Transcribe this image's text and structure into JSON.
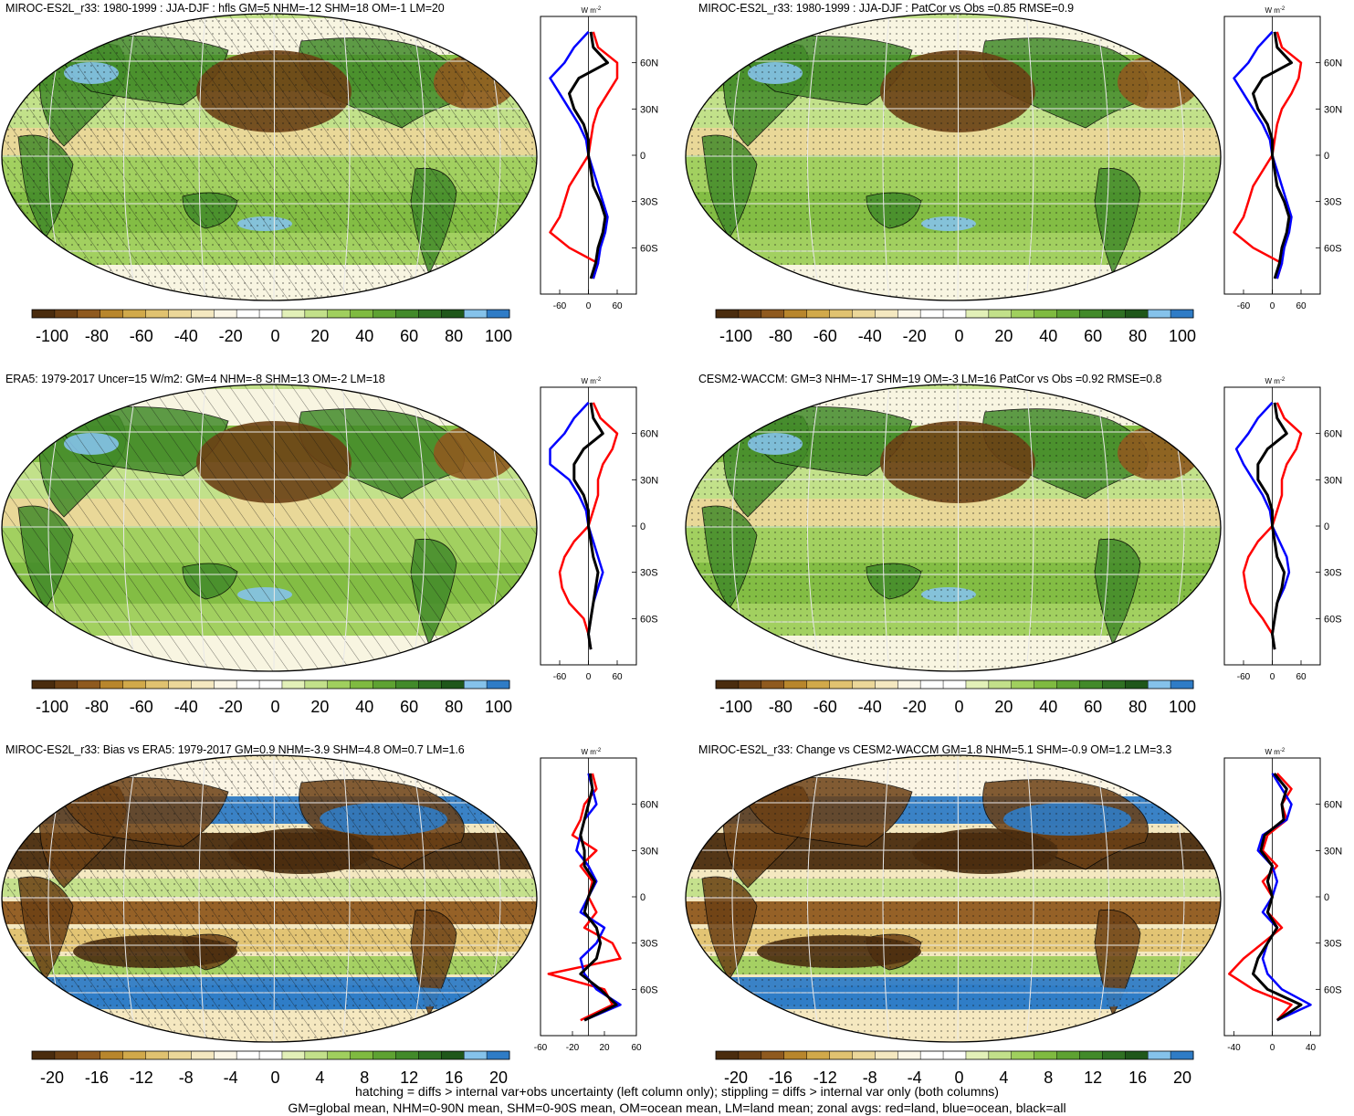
{
  "footer": {
    "line1": "hatching = diffs > internal var+obs uncertainty (left column only); stippling = diffs > internal var only (both columns)",
    "line2": "GM=global mean, NHM=0-90N mean, SHM=0-90S mean, OM=ocean mean, LM=land mean; zonal avgs: red=land, blue=ocean, black=all"
  },
  "palette": [
    "#4a2c0e",
    "#6b4015",
    "#8f5a1f",
    "#b8862c",
    "#d1a94a",
    "#e0c270",
    "#ebd799",
    "#f4e8c0",
    "#fbf6e6",
    "#ffffff",
    "#ffffff",
    "#e2f0b8",
    "#c2e08a",
    "#a0cf5e",
    "#7fba40",
    "#5ea232",
    "#428a2a",
    "#2f7023",
    "#1f571a",
    "#85c2ea",
    "#2f7cc6"
  ],
  "colors": {
    "land": "#ff0000",
    "ocean": "#0000ff",
    "all": "#000000"
  },
  "zonal_unit": "W m",
  "zonal_unit_sup": "-2",
  "lat_ticks": [
    "60N",
    "30N",
    "0",
    "30S",
    "60S"
  ],
  "panels": [
    {
      "id": "miroc-clim",
      "title": "MIROC-ES2L_r33: 1980-1999 : JJA-DJF : hfls GM=5 NHM=-12 SHM=18 OM=-1 LM=20",
      "colorbar_labels": [
        "-100",
        "-80",
        "-60",
        "-40",
        "-20",
        "0",
        "20",
        "40",
        "60",
        "80",
        "100"
      ],
      "zonal_ticks": [
        "-60",
        "0",
        "60"
      ],
      "zonal_range": [
        -100,
        100
      ],
      "pattern": "both",
      "chart_data": {
        "type": "line",
        "x_label": "W m-2",
        "lat": [
          80,
          70,
          60,
          50,
          40,
          30,
          20,
          10,
          0,
          -10,
          -20,
          -30,
          -40,
          -50,
          -60,
          -70,
          -80
        ],
        "series": [
          {
            "name": "red",
            "values": [
              10,
              20,
              60,
              60,
              40,
              20,
              10,
              5,
              0,
              -20,
              -40,
              -50,
              -60,
              -80,
              -40,
              20,
              10
            ]
          },
          {
            "name": "blue",
            "values": [
              0,
              -30,
              -50,
              -80,
              -60,
              -40,
              -20,
              -5,
              0,
              10,
              20,
              30,
              40,
              35,
              25,
              20,
              10
            ]
          },
          {
            "name": "black",
            "values": [
              5,
              10,
              40,
              -20,
              -40,
              -30,
              -10,
              0,
              0,
              5,
              10,
              25,
              35,
              30,
              20,
              15,
              5
            ]
          }
        ]
      }
    },
    {
      "id": "miroc-patcor",
      "title": "MIROC-ES2L_r33: 1980-1999 : JJA-DJF : PatCor vs Obs =0.85 RMSE=0.9",
      "colorbar_labels": [
        "-100",
        "-80",
        "-60",
        "-40",
        "-20",
        "0",
        "20",
        "40",
        "60",
        "80",
        "100"
      ],
      "zonal_ticks": [
        "-60",
        "0",
        "60"
      ],
      "zonal_range": [
        -100,
        100
      ],
      "pattern": "stipple",
      "chart_data": {
        "type": "line",
        "x_label": "W m-2",
        "lat": [
          80,
          70,
          60,
          50,
          40,
          30,
          20,
          10,
          0,
          -10,
          -20,
          -30,
          -40,
          -50,
          -60,
          -70,
          -80
        ],
        "series": [
          {
            "name": "red",
            "values": [
              10,
              20,
              60,
              55,
              40,
              20,
              10,
              5,
              0,
              -20,
              -40,
              -50,
              -60,
              -80,
              -40,
              20,
              10
            ]
          },
          {
            "name": "blue",
            "values": [
              0,
              -30,
              -50,
              -80,
              -60,
              -40,
              -20,
              -5,
              0,
              10,
              20,
              30,
              40,
              35,
              25,
              20,
              10
            ]
          },
          {
            "name": "black",
            "values": [
              5,
              10,
              40,
              -20,
              -40,
              -30,
              -10,
              0,
              0,
              5,
              10,
              25,
              35,
              30,
              20,
              15,
              5
            ]
          }
        ]
      }
    },
    {
      "id": "era5",
      "title": "ERA5: 1979-2017 Uncer=15 W/m2: GM=4 NHM=-8 SHM=13 OM=-2 LM=18",
      "colorbar_labels": [
        "-100",
        "-80",
        "-60",
        "-40",
        "-20",
        "0",
        "20",
        "40",
        "60",
        "80",
        "100"
      ],
      "zonal_ticks": [
        "-60",
        "0",
        "60"
      ],
      "zonal_range": [
        -100,
        100
      ],
      "pattern": "hatch",
      "chart_data": {
        "type": "line",
        "x_label": "W m-2",
        "lat": [
          80,
          70,
          60,
          50,
          40,
          30,
          20,
          10,
          0,
          -10,
          -20,
          -30,
          -40,
          -50,
          -60,
          -70,
          -80
        ],
        "series": [
          {
            "name": "red",
            "values": [
              10,
              25,
              60,
              50,
              30,
              20,
              20,
              10,
              0,
              -30,
              -50,
              -60,
              -55,
              -40,
              -10,
              0,
              5
            ]
          },
          {
            "name": "blue",
            "values": [
              0,
              -30,
              -50,
              -80,
              -80,
              -40,
              -20,
              -5,
              0,
              10,
              20,
              30,
              20,
              10,
              5,
              0,
              5
            ]
          },
          {
            "name": "black",
            "values": [
              5,
              10,
              30,
              -10,
              -30,
              -30,
              -10,
              0,
              0,
              5,
              10,
              20,
              15,
              10,
              5,
              0,
              5
            ]
          }
        ]
      }
    },
    {
      "id": "cesm2",
      "title": "CESM2-WACCM: GM=3 NHM=-17 SHM=19 OM=-3 LM=16 PatCor vs Obs =0.92 RMSE=0.8",
      "colorbar_labels": [
        "-100",
        "-80",
        "-60",
        "-40",
        "-20",
        "0",
        "20",
        "40",
        "60",
        "80",
        "100"
      ],
      "zonal_ticks": [
        "-60",
        "0",
        "60"
      ],
      "zonal_range": [
        -100,
        100
      ],
      "pattern": "stipple",
      "chart_data": {
        "type": "line",
        "x_label": "W m-2",
        "lat": [
          80,
          70,
          60,
          50,
          40,
          30,
          20,
          10,
          0,
          -10,
          -20,
          -30,
          -40,
          -50,
          -60,
          -70,
          -80
        ],
        "series": [
          {
            "name": "red",
            "values": [
              10,
              25,
              60,
              50,
              30,
              20,
              20,
              10,
              0,
              -30,
              -50,
              -60,
              -55,
              -45,
              -20,
              0,
              5
            ]
          },
          {
            "name": "blue",
            "values": [
              0,
              -30,
              -50,
              -75,
              -60,
              -40,
              -20,
              -5,
              0,
              15,
              30,
              35,
              25,
              10,
              5,
              0,
              5
            ]
          },
          {
            "name": "black",
            "values": [
              5,
              10,
              30,
              -10,
              -30,
              -30,
              -10,
              0,
              0,
              5,
              10,
              25,
              20,
              10,
              5,
              0,
              5
            ]
          }
        ]
      }
    },
    {
      "id": "bias",
      "title": "MIROC-ES2L_r33: Bias vs ERA5: 1979-2017 GM=0.9 NHM=-3.9 SHM=4.8 OM=0.7 LM=1.6",
      "colorbar_labels": [
        "-20",
        "-16",
        "-12",
        "-8",
        "-4",
        "0",
        "4",
        "8",
        "12",
        "16",
        "20"
      ],
      "zonal_ticks": [
        "-60",
        "-20",
        "20",
        "60"
      ],
      "zonal_range": [
        -60,
        60
      ],
      "pattern": "both",
      "chart_data": {
        "type": "line",
        "x_label": "W m-2",
        "lat": [
          80,
          70,
          60,
          50,
          40,
          30,
          20,
          10,
          0,
          -10,
          -20,
          -30,
          -40,
          -50,
          -60,
          -70,
          -80
        ],
        "series": [
          {
            "name": "red",
            "values": [
              5,
              10,
              -5,
              -10,
              -20,
              10,
              -10,
              5,
              0,
              10,
              -5,
              30,
              40,
              -50,
              20,
              30,
              -10
            ]
          },
          {
            "name": "blue",
            "values": [
              0,
              5,
              10,
              -5,
              -10,
              -15,
              0,
              10,
              0,
              -10,
              20,
              10,
              -10,
              -5,
              10,
              40,
              -5
            ]
          },
          {
            "name": "black",
            "values": [
              2,
              5,
              0,
              -5,
              -10,
              -5,
              -5,
              8,
              0,
              -5,
              10,
              15,
              10,
              -10,
              15,
              35,
              -5
            ]
          }
        ]
      }
    },
    {
      "id": "change",
      "title": "MIROC-ES2L_r33: Change vs CESM2-WACCM GM=1.8 NHM=5.1 SHM=-0.9 OM=1.2 LM=3.3",
      "colorbar_labels": [
        "-20",
        "-16",
        "-12",
        "-8",
        "-4",
        "0",
        "4",
        "8",
        "12",
        "16",
        "20"
      ],
      "zonal_ticks": [
        "-40",
        "0",
        "40"
      ],
      "zonal_range": [
        -50,
        50
      ],
      "pattern": "stipple",
      "chart_data": {
        "type": "line",
        "x_label": "W m-2",
        "lat": [
          80,
          70,
          60,
          50,
          40,
          30,
          20,
          10,
          0,
          -10,
          -20,
          -30,
          -40,
          -50,
          -60,
          -70,
          -80
        ],
        "series": [
          {
            "name": "red",
            "values": [
              5,
              20,
              10,
              15,
              -5,
              -10,
              5,
              -10,
              0,
              -5,
              10,
              -10,
              -30,
              -45,
              -20,
              20,
              5
            ]
          },
          {
            "name": "blue",
            "values": [
              0,
              10,
              20,
              15,
              -10,
              -15,
              0,
              5,
              0,
              -10,
              5,
              -5,
              -10,
              -5,
              10,
              40,
              5
            ]
          },
          {
            "name": "black",
            "values": [
              2,
              15,
              10,
              12,
              -8,
              -12,
              0,
              -5,
              0,
              -5,
              5,
              -5,
              -15,
              -20,
              -5,
              30,
              5
            ]
          }
        ]
      }
    }
  ]
}
